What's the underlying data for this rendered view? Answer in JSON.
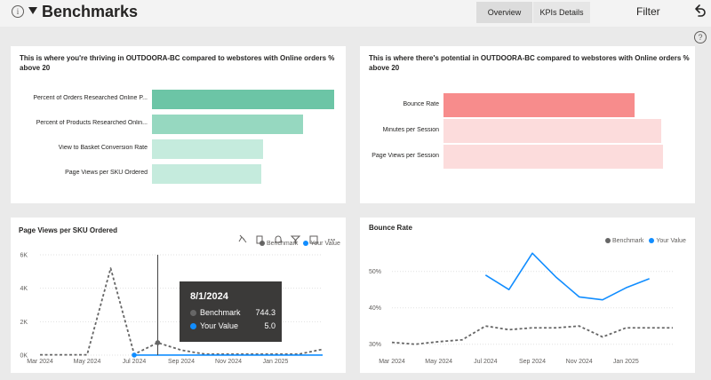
{
  "header": {
    "info_icon": "i",
    "title": "Benchmarks",
    "tabs": [
      "Overview",
      "KPIs Details"
    ],
    "filter_label": "Filter",
    "help_icon": "?"
  },
  "thriving": {
    "title": "This is where you're thriving in OUTDOORA-BC compared to webstores with Online orders % above 20",
    "bars": [
      {
        "label": "Percent of Orders Researched Online P...",
        "value": 1.0,
        "color": "#6cc5a6"
      },
      {
        "label": "Percent of Products Researched Onlin...",
        "value": 0.83,
        "color": "#96d8c0"
      },
      {
        "label": "View to Basket Conversion Rate",
        "value": 0.61,
        "color": "#c5ebdd"
      },
      {
        "label": "Page Views per SKU Ordered",
        "value": 0.6,
        "color": "#c5ebdd"
      }
    ]
  },
  "potential": {
    "title": "This is where there's potential in OUTDOORA-BC compared to webstores with Online orders % above 20",
    "bars": [
      {
        "label": "Bounce Rate",
        "value": 0.87,
        "color": "#f78c8c"
      },
      {
        "label": "Minutes per Session",
        "value": 0.99,
        "color": "#fcdcdc"
      },
      {
        "label": "Page Views per Session",
        "value": 1.0,
        "color": "#fcdcdc"
      }
    ]
  },
  "page_views_chart": {
    "title": "Page Views per SKU Ordered",
    "legend": [
      "Benchmark",
      "Your Value"
    ],
    "tooltip": {
      "date": "8/1/2024",
      "rows": [
        {
          "label": "Benchmark",
          "value": "744.3",
          "color": "#666666"
        },
        {
          "label": "Your Value",
          "value": "5.0",
          "color": "#118dff"
        }
      ]
    }
  },
  "bounce_chart": {
    "title": "Bounce Rate",
    "legend": [
      "Benchmark",
      "Your Value"
    ]
  },
  "colors": {
    "benchmark": "#666666",
    "your_value": "#118dff"
  },
  "chart_data": [
    {
      "type": "line",
      "title": "Page Views per SKU Ordered",
      "x": [
        "Mar 2024",
        "Apr 2024",
        "May 2024",
        "Jun 2024",
        "Jul 2024",
        "Aug 2024",
        "Sep 2024",
        "Oct 2024",
        "Nov 2024",
        "Dec 2024",
        "Jan 2025",
        "Feb 2025",
        "Mar 2025"
      ],
      "x_ticks": [
        "Mar 2024",
        "May 2024",
        "Jul 2024",
        "Sep 2024",
        "Nov 2024",
        "Jan 2025"
      ],
      "y_ticks": [
        "0K",
        "2K",
        "4K",
        "6K"
      ],
      "ylim": [
        0,
        6000
      ],
      "series": [
        {
          "name": "Benchmark",
          "style": "dashed",
          "values": [
            20,
            20,
            20,
            5200,
            50,
            744.3,
            300,
            60,
            60,
            60,
            60,
            60,
            350
          ]
        },
        {
          "name": "Your Value",
          "style": "solid",
          "values": [
            null,
            null,
            null,
            null,
            5,
            5,
            5,
            5,
            5,
            5,
            5,
            5,
            5
          ]
        }
      ],
      "legend_position": "top-right",
      "grid": true
    },
    {
      "type": "line",
      "title": "Bounce Rate",
      "x": [
        "Mar 2024",
        "Apr 2024",
        "May 2024",
        "Jun 2024",
        "Jul 2024",
        "Aug 2024",
        "Sep 2024",
        "Oct 2024",
        "Nov 2024",
        "Dec 2024",
        "Jan 2025",
        "Feb 2025",
        "Mar 2025"
      ],
      "x_ticks": [
        "Mar 2024",
        "May 2024",
        "Jul 2024",
        "Sep 2024",
        "Nov 2024",
        "Jan 2025"
      ],
      "y_ticks": [
        "30%",
        "40%",
        "50%"
      ],
      "ylim": [
        27,
        57
      ],
      "series": [
        {
          "name": "Benchmark",
          "style": "dashed",
          "values": [
            30.5,
            30,
            30.7,
            31.2,
            35,
            34,
            34.5,
            34.5,
            35,
            32,
            34.5,
            34.5,
            34.5
          ]
        },
        {
          "name": "Your Value",
          "style": "solid",
          "values": [
            null,
            null,
            null,
            null,
            49,
            45,
            55,
            48.5,
            43,
            42.2,
            45.5,
            48,
            null
          ]
        }
      ],
      "legend_position": "top-right",
      "grid": true
    }
  ]
}
